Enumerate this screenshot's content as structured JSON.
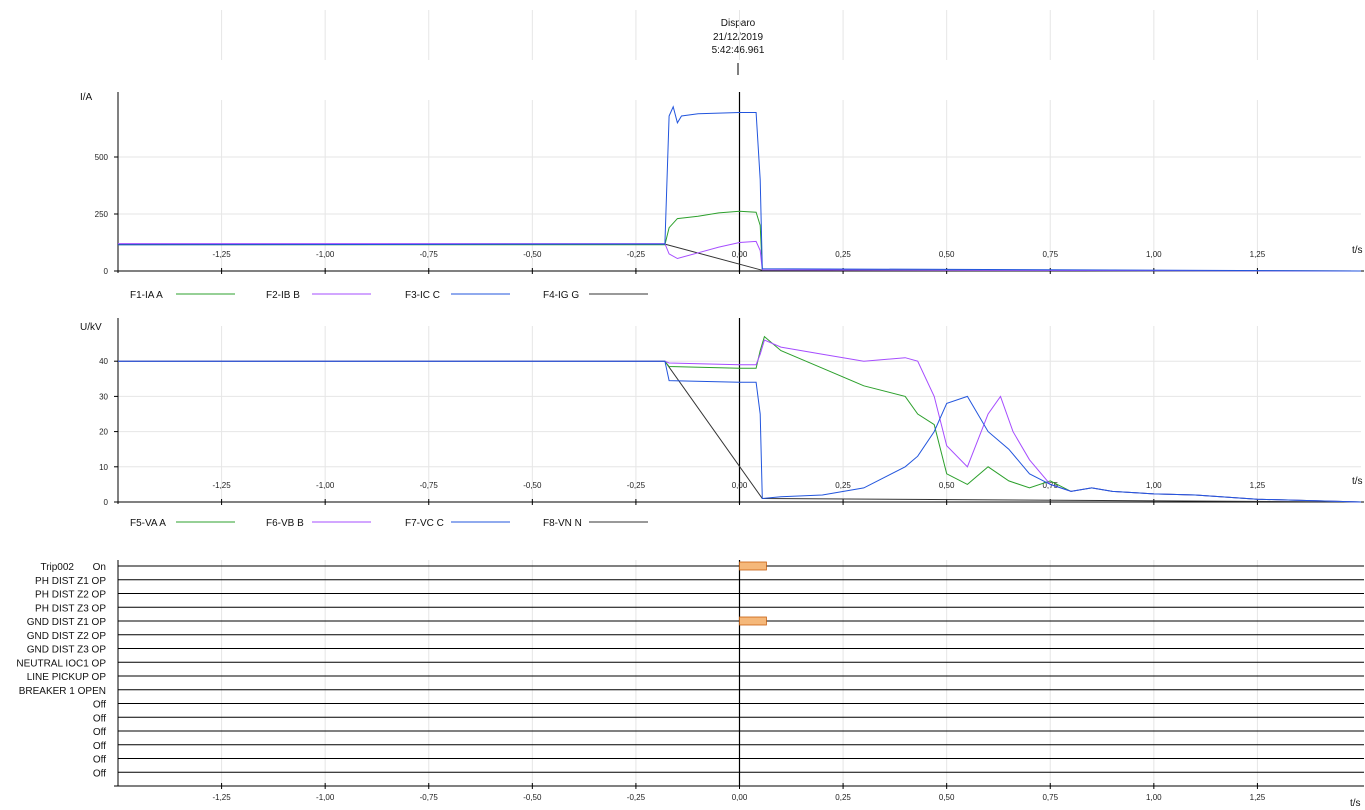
{
  "header": {
    "trigger_label": "Disparo",
    "trigger_date": "21/12/2019",
    "trigger_time": "5:42:46.961"
  },
  "chart_data": [
    {
      "type": "line",
      "ylabel": "I/A",
      "xlabel": "t/s",
      "xlim": [
        -1.5,
        1.5
      ],
      "ylim": [
        0,
        750
      ],
      "x_ticks": [
        "-1,25",
        "-1,00",
        "-0,75",
        "-0,50",
        "-0,25",
        "0,00",
        "0,25",
        "0,50",
        "0,75",
        "1,00",
        "1,25"
      ],
      "y_ticks": [
        "0",
        "250",
        "500"
      ],
      "grid": true,
      "legend_position": "bottom",
      "series": [
        {
          "name": "F1-IA A",
          "color": "#2ca02c",
          "points": [
            [
              -1.5,
              115
            ],
            [
              -0.18,
              115
            ],
            [
              -0.17,
              190
            ],
            [
              -0.15,
              230
            ],
            [
              -0.1,
              240
            ],
            [
              -0.05,
              255
            ],
            [
              0.0,
              262
            ],
            [
              0.04,
              258
            ],
            [
              0.05,
              200
            ],
            [
              0.055,
              5
            ],
            [
              1.5,
              0
            ]
          ]
        },
        {
          "name": "F2-IB B",
          "color": "#a64dff",
          "points": [
            [
              -1.5,
              120
            ],
            [
              -0.18,
              120
            ],
            [
              -0.17,
              75
            ],
            [
              -0.15,
              55
            ],
            [
              -0.1,
              80
            ],
            [
              -0.05,
              105
            ],
            [
              0.0,
              125
            ],
            [
              0.04,
              130
            ],
            [
              0.05,
              90
            ],
            [
              0.055,
              5
            ],
            [
              1.5,
              0
            ]
          ]
        },
        {
          "name": "F3-IC C",
          "color": "#2255dd",
          "points": [
            [
              -1.5,
              115
            ],
            [
              -0.18,
              118
            ],
            [
              -0.17,
              680
            ],
            [
              -0.16,
              720
            ],
            [
              -0.15,
              650
            ],
            [
              -0.14,
              680
            ],
            [
              -0.1,
              690
            ],
            [
              0.0,
              695
            ],
            [
              0.04,
              695
            ],
            [
              0.05,
              400
            ],
            [
              0.055,
              10
            ],
            [
              1.5,
              0
            ]
          ]
        },
        {
          "name": "F4-IG G",
          "color": "#333333",
          "points": [
            [
              -1.5,
              118
            ],
            [
              -0.18,
              118
            ],
            [
              0.055,
              3
            ],
            [
              1.5,
              0
            ]
          ]
        }
      ]
    },
    {
      "type": "line",
      "ylabel": "U/kV",
      "xlabel": "t/s",
      "xlim": [
        -1.5,
        1.5
      ],
      "ylim": [
        0,
        50
      ],
      "x_ticks": [
        "-1,25",
        "-1,00",
        "-0,75",
        "-0,50",
        "-0,25",
        "0,00",
        "0,25",
        "0,50",
        "0,75",
        "1,00",
        "1,25"
      ],
      "y_ticks": [
        "0",
        "10",
        "20",
        "30",
        "40"
      ],
      "grid": true,
      "legend_position": "bottom",
      "series": [
        {
          "name": "F5-VA A",
          "color": "#2ca02c",
          "points": [
            [
              -1.5,
              40
            ],
            [
              -0.18,
              40
            ],
            [
              -0.17,
              38.5
            ],
            [
              0.0,
              38
            ],
            [
              0.04,
              38
            ],
            [
              0.05,
              43
            ],
            [
              0.06,
              47
            ],
            [
              0.1,
              43
            ],
            [
              0.2,
              38
            ],
            [
              0.3,
              33
            ],
            [
              0.4,
              30
            ],
            [
              0.43,
              25
            ],
            [
              0.47,
              22
            ],
            [
              0.5,
              8
            ],
            [
              0.55,
              5
            ],
            [
              0.6,
              10
            ],
            [
              0.65,
              6
            ],
            [
              0.7,
              4
            ],
            [
              0.75,
              6
            ],
            [
              0.8,
              3
            ],
            [
              0.85,
              4
            ],
            [
              0.9,
              3
            ],
            [
              1.0,
              2.3
            ],
            [
              1.1,
              2
            ],
            [
              1.25,
              0.8
            ],
            [
              1.5,
              0
            ]
          ]
        },
        {
          "name": "F6-VB B",
          "color": "#a64dff",
          "points": [
            [
              -1.5,
              40
            ],
            [
              -0.18,
              40
            ],
            [
              -0.17,
              39.5
            ],
            [
              0.0,
              39
            ],
            [
              0.04,
              39
            ],
            [
              0.05,
              42
            ],
            [
              0.06,
              46
            ],
            [
              0.1,
              44
            ],
            [
              0.2,
              42
            ],
            [
              0.3,
              40
            ],
            [
              0.4,
              41
            ],
            [
              0.43,
              40
            ],
            [
              0.47,
              30
            ],
            [
              0.5,
              16
            ],
            [
              0.55,
              10
            ],
            [
              0.6,
              25
            ],
            [
              0.63,
              30
            ],
            [
              0.66,
              20
            ],
            [
              0.7,
              12
            ],
            [
              0.75,
              5
            ],
            [
              0.8,
              3
            ],
            [
              0.85,
              4
            ],
            [
              0.9,
              3
            ],
            [
              1.0,
              2.3
            ],
            [
              1.1,
              2
            ],
            [
              1.25,
              0.8
            ],
            [
              1.5,
              0
            ]
          ]
        },
        {
          "name": "F7-VC C",
          "color": "#2255dd",
          "points": [
            [
              -1.5,
              40
            ],
            [
              -0.18,
              40
            ],
            [
              -0.17,
              34.5
            ],
            [
              0.0,
              34
            ],
            [
              0.04,
              34
            ],
            [
              0.05,
              25
            ],
            [
              0.055,
              1
            ],
            [
              0.1,
              1.5
            ],
            [
              0.2,
              2
            ],
            [
              0.3,
              4
            ],
            [
              0.4,
              10
            ],
            [
              0.43,
              13
            ],
            [
              0.47,
              20
            ],
            [
              0.5,
              28
            ],
            [
              0.55,
              30
            ],
            [
              0.6,
              20
            ],
            [
              0.65,
              15
            ],
            [
              0.7,
              8
            ],
            [
              0.75,
              5
            ],
            [
              0.8,
              3
            ],
            [
              0.85,
              4
            ],
            [
              0.9,
              3
            ],
            [
              1.0,
              2.3
            ],
            [
              1.1,
              2
            ],
            [
              1.25,
              0.8
            ],
            [
              1.5,
              0
            ]
          ]
        },
        {
          "name": "F8-VN N",
          "color": "#333333",
          "points": [
            [
              -1.5,
              40
            ],
            [
              -0.18,
              40
            ],
            [
              0.055,
              1
            ],
            [
              1.5,
              0
            ]
          ]
        }
      ]
    },
    {
      "type": "table",
      "xlabel": "t/s",
      "xlim": [
        -1.5,
        1.5
      ],
      "x_ticks": [
        "-1,25",
        "-1,00",
        "-0,75",
        "-0,50",
        "-0,25",
        "0,00",
        "0,25",
        "0,50",
        "0,75",
        "1,00",
        "1,25"
      ],
      "channels": [
        {
          "label": "Trip002",
          "state": "On",
          "active": [
            [
              0.0,
              0.065
            ]
          ]
        },
        {
          "label": "PH DIST Z1 OP",
          "state": "",
          "active": []
        },
        {
          "label": "PH DIST Z2 OP",
          "state": "",
          "active": []
        },
        {
          "label": "PH DIST Z3 OP",
          "state": "",
          "active": []
        },
        {
          "label": "GND DIST Z1 OP",
          "state": "",
          "active": [
            [
              0.0,
              0.065
            ]
          ]
        },
        {
          "label": "GND DIST Z2 OP",
          "state": "",
          "active": []
        },
        {
          "label": "GND DIST Z3 OP",
          "state": "",
          "active": []
        },
        {
          "label": "NEUTRAL IOC1 OP",
          "state": "",
          "active": []
        },
        {
          "label": "LINE PICKUP OP",
          "state": "",
          "active": []
        },
        {
          "label": "BREAKER 1 OPEN",
          "state": "",
          "active": []
        },
        {
          "label": "",
          "state": "Off",
          "active": []
        },
        {
          "label": "",
          "state": "Off",
          "active": []
        },
        {
          "label": "",
          "state": "Off",
          "active": []
        },
        {
          "label": "",
          "state": "Off",
          "active": []
        },
        {
          "label": "",
          "state": "Off",
          "active": []
        },
        {
          "label": "",
          "state": "Off",
          "active": []
        }
      ],
      "active_color": "#f5b87a"
    }
  ]
}
